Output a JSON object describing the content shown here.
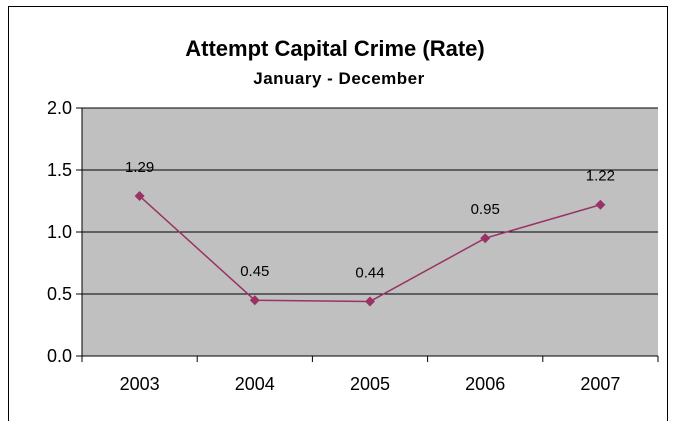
{
  "chart_data": {
    "type": "line",
    "title": "Attempt Capital Crime (Rate)",
    "subtitle": "January - December",
    "xlabel": "",
    "ylabel": "",
    "categories": [
      "2003",
      "2004",
      "2005",
      "2006",
      "2007"
    ],
    "series": [
      {
        "values": [
          1.29,
          0.45,
          0.44,
          0.95,
          1.22
        ],
        "data_labels": [
          "1.29",
          "0.45",
          "0.44",
          "0.95",
          "1.22"
        ]
      }
    ],
    "ylim": [
      0,
      2
    ],
    "y_ticks": [
      "0.0",
      "0.5",
      "1.0",
      "1.5",
      "2.0"
    ],
    "y_tick_values": [
      0,
      0.5,
      1,
      1.5,
      2
    ],
    "grid": "horizontal",
    "legend": "none",
    "colors": {
      "plot_background": "#c0c0c0",
      "series_line": "#993366",
      "marker": "#993366",
      "gridline": "#000000",
      "frame": "#000000"
    }
  }
}
